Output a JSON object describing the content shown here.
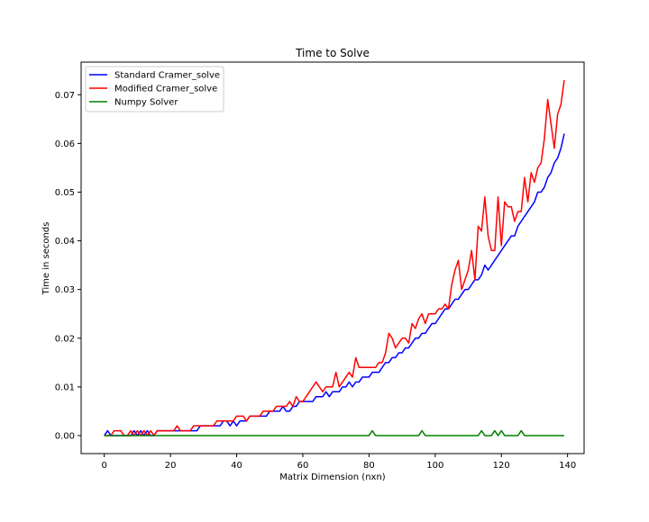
{
  "chart_data": {
    "type": "line",
    "title": "Time to Solve",
    "xlabel": "Matrix Dimension (nxn)",
    "ylabel": "Time in seconds",
    "xlim": [
      -7,
      145
    ],
    "ylim": [
      -0.0037,
      0.0767
    ],
    "xticks": [
      0,
      20,
      40,
      60,
      80,
      100,
      120,
      140
    ],
    "xtick_labels": [
      "0",
      "20",
      "40",
      "60",
      "80",
      "100",
      "120",
      "140"
    ],
    "yticks": [
      0.0,
      0.01,
      0.02,
      0.03,
      0.04,
      0.05,
      0.06,
      0.07
    ],
    "ytick_labels": [
      "0.00",
      "0.01",
      "0.02",
      "0.03",
      "0.04",
      "0.05",
      "0.06",
      "0.07"
    ],
    "grid": false,
    "legend_position": "top-left",
    "series": [
      {
        "name": "Standard Cramer_solve",
        "color": "#0000ff",
        "x": [
          0,
          1,
          2,
          3,
          4,
          5,
          6,
          7,
          8,
          9,
          10,
          11,
          12,
          13,
          14,
          15,
          16,
          17,
          18,
          19,
          20,
          21,
          22,
          23,
          24,
          25,
          26,
          27,
          28,
          29,
          30,
          31,
          32,
          33,
          34,
          35,
          36,
          37,
          38,
          39,
          40,
          41,
          42,
          43,
          44,
          45,
          46,
          47,
          48,
          49,
          50,
          51,
          52,
          53,
          54,
          55,
          56,
          57,
          58,
          59,
          60,
          61,
          62,
          63,
          64,
          65,
          66,
          67,
          68,
          69,
          70,
          71,
          72,
          73,
          74,
          75,
          76,
          77,
          78,
          79,
          80,
          81,
          82,
          83,
          84,
          85,
          86,
          87,
          88,
          89,
          90,
          91,
          92,
          93,
          94,
          95,
          96,
          97,
          98,
          99,
          100,
          101,
          102,
          103,
          104,
          105,
          106,
          107,
          108,
          109,
          110,
          111,
          112,
          113,
          114,
          115,
          116,
          117,
          118,
          119,
          120,
          121,
          122,
          123,
          124,
          125,
          126,
          127,
          128,
          129,
          130,
          131,
          132,
          133,
          134,
          135,
          136,
          137,
          138,
          139
        ],
        "values": [
          0,
          0.001,
          0,
          0,
          0,
          0,
          0,
          0,
          0,
          0.001,
          0,
          0.001,
          0,
          0.001,
          0,
          0,
          0.001,
          0.001,
          0.001,
          0.001,
          0.001,
          0.001,
          0.001,
          0.001,
          0.001,
          0.001,
          0.001,
          0.001,
          0.001,
          0.002,
          0.002,
          0.002,
          0.002,
          0.002,
          0.002,
          0.002,
          0.003,
          0.003,
          0.002,
          0.003,
          0.002,
          0.003,
          0.003,
          0.003,
          0.004,
          0.004,
          0.004,
          0.004,
          0.004,
          0.004,
          0.005,
          0.005,
          0.005,
          0.005,
          0.006,
          0.005,
          0.005,
          0.006,
          0.006,
          0.007,
          0.007,
          0.007,
          0.007,
          0.007,
          0.008,
          0.008,
          0.008,
          0.009,
          0.008,
          0.009,
          0.009,
          0.009,
          0.01,
          0.01,
          0.011,
          0.01,
          0.011,
          0.011,
          0.012,
          0.012,
          0.012,
          0.013,
          0.013,
          0.013,
          0.014,
          0.015,
          0.015,
          0.016,
          0.016,
          0.017,
          0.017,
          0.018,
          0.018,
          0.019,
          0.02,
          0.02,
          0.021,
          0.021,
          0.022,
          0.023,
          0.023,
          0.024,
          0.025,
          0.026,
          0.026,
          0.027,
          0.028,
          0.028,
          0.029,
          0.03,
          0.03,
          0.031,
          0.032,
          0.032,
          0.033,
          0.035,
          0.034,
          0.035,
          0.036,
          0.037,
          0.038,
          0.039,
          0.04,
          0.041,
          0.041,
          0.043,
          0.044,
          0.045,
          0.046,
          0.047,
          0.048,
          0.05,
          0.05,
          0.051,
          0.053,
          0.054,
          0.056,
          0.057,
          0.059,
          0.062
        ]
      },
      {
        "name": "Modified Cramer_solve",
        "color": "#ff0000",
        "x": [
          0,
          1,
          2,
          3,
          4,
          5,
          6,
          7,
          8,
          9,
          10,
          11,
          12,
          13,
          14,
          15,
          16,
          17,
          18,
          19,
          20,
          21,
          22,
          23,
          24,
          25,
          26,
          27,
          28,
          29,
          30,
          31,
          32,
          33,
          34,
          35,
          36,
          37,
          38,
          39,
          40,
          41,
          42,
          43,
          44,
          45,
          46,
          47,
          48,
          49,
          50,
          51,
          52,
          53,
          54,
          55,
          56,
          57,
          58,
          59,
          60,
          61,
          62,
          63,
          64,
          65,
          66,
          67,
          68,
          69,
          70,
          71,
          72,
          73,
          74,
          75,
          76,
          77,
          78,
          79,
          80,
          81,
          82,
          83,
          84,
          85,
          86,
          87,
          88,
          89,
          90,
          91,
          92,
          93,
          94,
          95,
          96,
          97,
          98,
          99,
          100,
          101,
          102,
          103,
          104,
          105,
          106,
          107,
          108,
          109,
          110,
          111,
          112,
          113,
          114,
          115,
          116,
          117,
          118,
          119,
          120,
          121,
          122,
          123,
          124,
          125,
          126,
          127,
          128,
          129,
          130,
          131,
          132,
          133,
          134,
          135,
          136,
          137,
          138,
          139
        ],
        "values": [
          0,
          0,
          0,
          0.001,
          0.001,
          0.001,
          0,
          0,
          0.001,
          0,
          0.001,
          0,
          0.001,
          0,
          0.001,
          0,
          0.001,
          0.001,
          0.001,
          0.001,
          0.001,
          0.001,
          0.002,
          0.001,
          0.001,
          0.001,
          0.001,
          0.002,
          0.002,
          0.002,
          0.002,
          0.002,
          0.002,
          0.002,
          0.003,
          0.003,
          0.003,
          0.003,
          0.003,
          0.003,
          0.004,
          0.004,
          0.004,
          0.003,
          0.004,
          0.004,
          0.004,
          0.004,
          0.005,
          0.005,
          0.005,
          0.005,
          0.006,
          0.006,
          0.006,
          0.006,
          0.007,
          0.006,
          0.008,
          0.007,
          0.007,
          0.008,
          0.009,
          0.01,
          0.011,
          0.01,
          0.009,
          0.01,
          0.01,
          0.01,
          0.013,
          0.01,
          0.011,
          0.012,
          0.013,
          0.012,
          0.016,
          0.014,
          0.014,
          0.014,
          0.014,
          0.014,
          0.014,
          0.015,
          0.015,
          0.017,
          0.021,
          0.02,
          0.018,
          0.019,
          0.02,
          0.02,
          0.019,
          0.023,
          0.022,
          0.024,
          0.025,
          0.023,
          0.025,
          0.025,
          0.025,
          0.026,
          0.026,
          0.027,
          0.026,
          0.031,
          0.034,
          0.036,
          0.03,
          0.032,
          0.034,
          0.038,
          0.032,
          0.043,
          0.042,
          0.049,
          0.041,
          0.038,
          0.038,
          0.049,
          0.039,
          0.048,
          0.047,
          0.047,
          0.044,
          0.046,
          0.046,
          0.053,
          0.048,
          0.054,
          0.052,
          0.055,
          0.056,
          0.061,
          0.069,
          0.064,
          0.059,
          0.066,
          0.068,
          0.073
        ]
      },
      {
        "name": "Numpy Solver",
        "color": "#008000",
        "x": [
          0,
          80,
          81,
          82,
          95,
          96,
          97,
          113,
          114,
          115,
          117,
          118,
          119,
          120,
          121,
          125,
          126,
          127,
          139
        ],
        "values": [
          0,
          0,
          0.001,
          0,
          0,
          0.001,
          0,
          0,
          0.001,
          0,
          0,
          0.001,
          0,
          0.001,
          0,
          0,
          0.001,
          0,
          0
        ]
      }
    ]
  }
}
